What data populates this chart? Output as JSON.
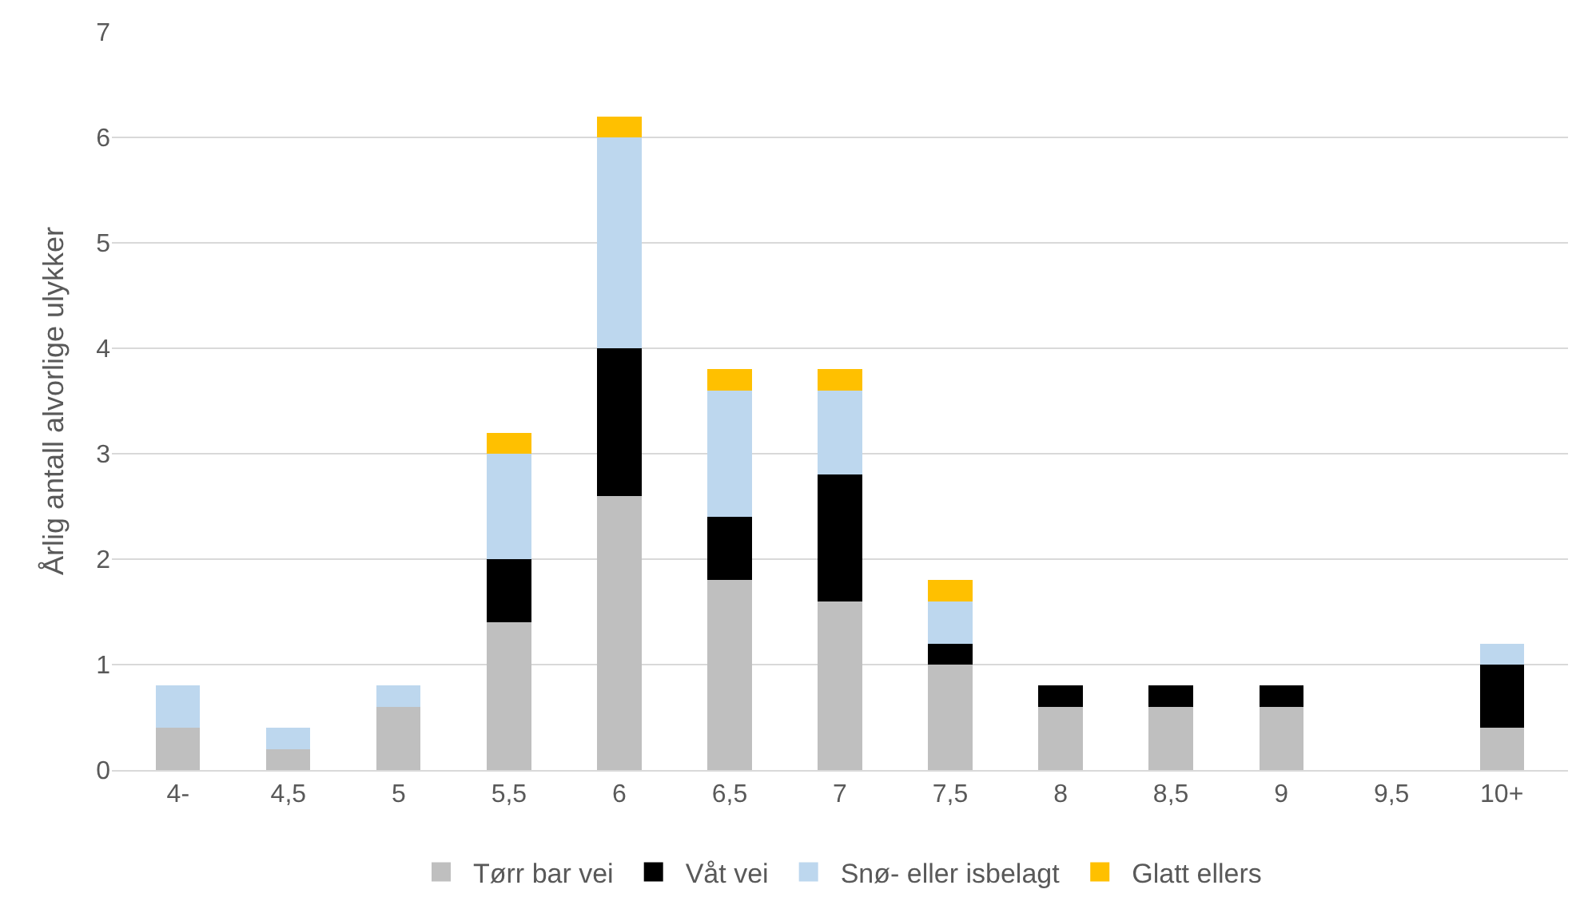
{
  "chart_data": {
    "type": "bar",
    "stacked": true,
    "ylabel": "Årlig antall alvorlige ulykker",
    "categories": [
      "4-",
      "4,5",
      "5",
      "5,5",
      "6",
      "6,5",
      "7",
      "7,5",
      "8",
      "8,5",
      "9",
      "9,5",
      "10+"
    ],
    "series": [
      {
        "name": "Tørr bar vei",
        "color": "#bfbfbf",
        "values": [
          0.4,
          0.2,
          0.6,
          1.4,
          2.6,
          1.8,
          1.6,
          1.0,
          0.6,
          0.6,
          0.6,
          0,
          0.4
        ]
      },
      {
        "name": "Våt vei",
        "color": "#000000",
        "values": [
          0,
          0,
          0,
          0.6,
          1.4,
          0.6,
          1.2,
          0.2,
          0.2,
          0.2,
          0.2,
          0,
          0.6
        ]
      },
      {
        "name": "Snø- eller isbelagt",
        "color": "#bdd7ee",
        "values": [
          0.4,
          0.2,
          0.2,
          1.0,
          2.0,
          1.2,
          0.8,
          0.4,
          0,
          0,
          0,
          0,
          0.2
        ]
      },
      {
        "name": "Glatt ellers",
        "color": "#ffc000",
        "values": [
          0,
          0,
          0,
          0.2,
          0.2,
          0.2,
          0.2,
          0.2,
          0,
          0,
          0,
          0,
          0
        ]
      }
    ],
    "ylim": [
      0,
      7
    ],
    "yticks": [
      0,
      1,
      2,
      3,
      4,
      5,
      6,
      7
    ],
    "grid": "y",
    "legend": "bottom"
  }
}
